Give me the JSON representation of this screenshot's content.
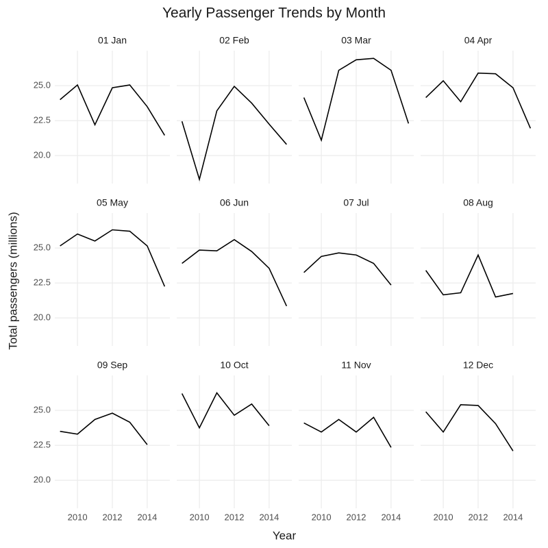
{
  "chart_data": {
    "type": "line",
    "title": "Yearly Passenger Trends by Month",
    "x_label": "Year",
    "y_label": "Total passengers (millions)",
    "x": [
      2009,
      2010,
      2011,
      2012,
      2013,
      2014,
      2015
    ],
    "xlim": [
      2008.7,
      2015.3
    ],
    "xticks": [
      2010,
      2012,
      2014
    ],
    "ylim": [
      18,
      27.5
    ],
    "yticks": [
      {
        "value": 20,
        "label": "20.0"
      },
      {
        "value": 22.5,
        "label": "22.5"
      },
      {
        "value": 25,
        "label": "25.0"
      }
    ],
    "grid": true,
    "series": [
      {
        "name": "01 Jan",
        "color": "#000000",
        "values": [
          24.0,
          25.05,
          22.2,
          24.85,
          25.05,
          23.5,
          21.45
        ]
      },
      {
        "name": "02 Feb",
        "color": "#000000",
        "values": [
          22.45,
          18.3,
          23.2,
          24.95,
          23.75,
          22.25,
          20.8
        ]
      },
      {
        "name": "03 Mar",
        "color": "#000000",
        "values": [
          24.15,
          21.1,
          26.1,
          26.85,
          26.95,
          26.1,
          22.3
        ]
      },
      {
        "name": "04 Apr",
        "color": "#000000",
        "values": [
          24.15,
          25.35,
          23.85,
          25.9,
          25.85,
          24.85,
          21.95
        ]
      },
      {
        "name": "05 May",
        "color": "#000000",
        "values": [
          25.15,
          26.0,
          25.5,
          26.3,
          26.2,
          25.15,
          22.25
        ]
      },
      {
        "name": "06 Jun",
        "color": "#000000",
        "values": [
          23.9,
          24.85,
          24.8,
          25.6,
          24.75,
          23.55,
          20.85
        ]
      },
      {
        "name": "07 Jul",
        "color": "#000000",
        "values": [
          23.25,
          24.4,
          24.65,
          24.5,
          23.9,
          22.35,
          null
        ]
      },
      {
        "name": "08 Aug",
        "color": "#000000",
        "values": [
          23.4,
          21.65,
          21.8,
          24.5,
          21.5,
          21.75,
          null
        ]
      },
      {
        "name": "09 Sep",
        "color": "#000000",
        "values": [
          23.5,
          23.3,
          24.35,
          24.8,
          24.15,
          22.55,
          null
        ]
      },
      {
        "name": "10 Oct",
        "color": "#000000",
        "values": [
          26.2,
          23.75,
          26.25,
          24.65,
          25.45,
          23.9,
          null
        ]
      },
      {
        "name": "11 Nov",
        "color": "#000000",
        "values": [
          24.1,
          23.45,
          24.35,
          23.45,
          24.5,
          22.35,
          null
        ]
      },
      {
        "name": "12 Dec",
        "color": "#000000",
        "values": [
          24.9,
          23.45,
          25.4,
          25.35,
          24.05,
          22.1,
          null
        ]
      }
    ]
  }
}
